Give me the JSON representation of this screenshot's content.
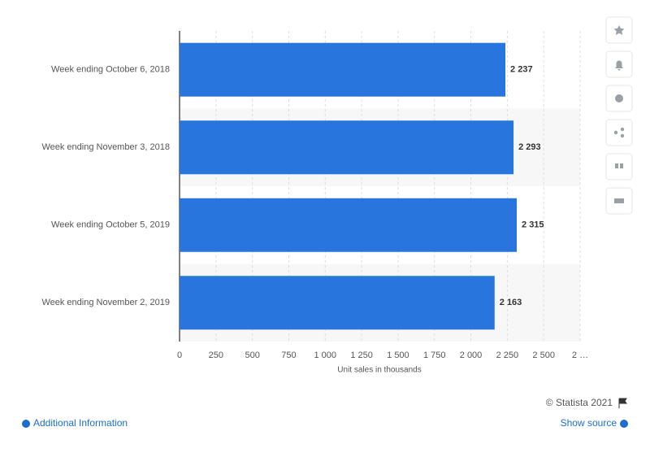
{
  "chart_data": {
    "type": "hbar",
    "categories": [
      "Week ending October 6, 2018",
      "Week ending November 3, 2018",
      "Week ending October 5, 2019",
      "Week ending November 2, 2019"
    ],
    "values": [
      2237,
      2293,
      2315,
      2163
    ],
    "value_labels": [
      "2 237",
      "2 293",
      "2 315",
      "2 163"
    ],
    "color": "#2876dd",
    "xlabel": "Unit sales in thousands",
    "xlim": [
      0,
      2750
    ],
    "xticks": [
      0,
      250,
      500,
      750,
      {
        "value": 1000,
        "label": "1 000"
      },
      {
        "value": 1250,
        "label": "1 250"
      },
      {
        "value": 1500,
        "label": "1 500"
      },
      {
        "value": 1750,
        "label": "1 750"
      },
      {
        "value": 2000,
        "label": "2 000"
      },
      {
        "value": 2250,
        "label": "2 250"
      },
      {
        "value": 2500,
        "label": "2 500"
      },
      {
        "value": 2750,
        "label": "2 …"
      }
    ],
    "grid": true
  },
  "footer": {
    "copyright": "© Statista 2021",
    "additional_info": "Additional Information",
    "show_source": "Show source"
  }
}
